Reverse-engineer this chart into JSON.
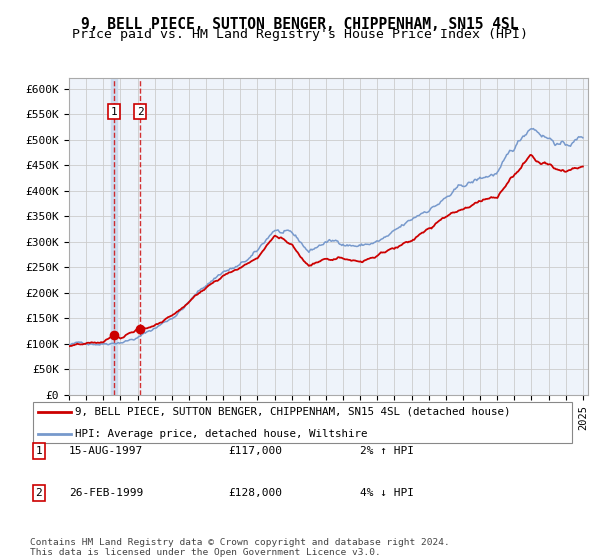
{
  "title": "9, BELL PIECE, SUTTON BENGER, CHIPPENHAM, SN15 4SL",
  "subtitle": "Price paid vs. HM Land Registry's House Price Index (HPI)",
  "ylim": [
    0,
    620000
  ],
  "yticks": [
    0,
    50000,
    100000,
    150000,
    200000,
    250000,
    300000,
    350000,
    400000,
    450000,
    500000,
    550000,
    600000
  ],
  "ytick_labels": [
    "£0",
    "£50K",
    "£100K",
    "£150K",
    "£200K",
    "£250K",
    "£300K",
    "£350K",
    "£400K",
    "£450K",
    "£500K",
    "£550K",
    "£600K"
  ],
  "hpi_color": "#7799cc",
  "price_color": "#cc0000",
  "point1_year": 1997.625,
  "point1_value": 117000,
  "point2_year": 1999.15,
  "point2_value": 128000,
  "legend_price_label": "9, BELL PIECE, SUTTON BENGER, CHIPPENHAM, SN15 4SL (detached house)",
  "legend_hpi_label": "HPI: Average price, detached house, Wiltshire",
  "table_rows": [
    {
      "num": "1",
      "date": "15-AUG-1997",
      "price": "£117,000",
      "hpi": "2% ↑ HPI"
    },
    {
      "num": "2",
      "date": "26-FEB-1999",
      "price": "£128,000",
      "hpi": "4% ↓ HPI"
    }
  ],
  "footer": "Contains HM Land Registry data © Crown copyright and database right 2024.\nThis data is licensed under the Open Government Licence v3.0.",
  "background_color": "#ffffff",
  "chart_bg_color": "#eef3fa",
  "grid_color": "#cccccc"
}
